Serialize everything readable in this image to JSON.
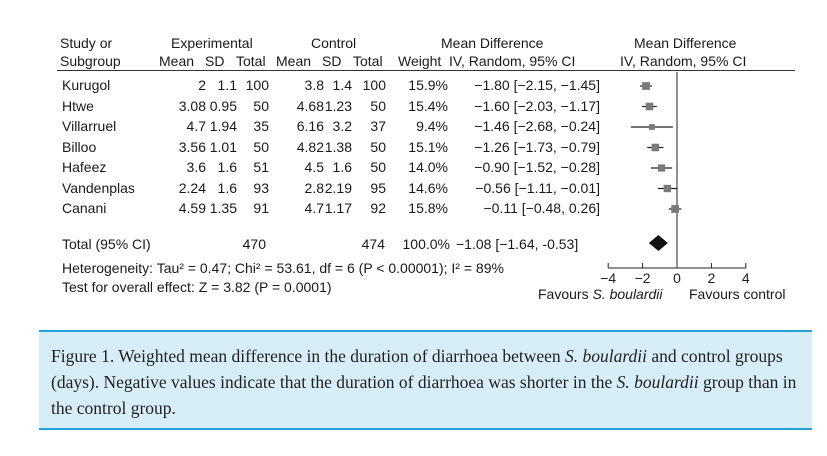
{
  "headers": {
    "study_1": "Study or",
    "study_2": "Subgroup",
    "experimental": "Experimental",
    "control": "Control",
    "md_1": "Mean Difference",
    "md_2": "IV, Random, 95% CI",
    "plot_1": "Mean Difference",
    "plot_2": "IV, Random, 95% CI",
    "mean": "Mean",
    "sd": "SD",
    "total": "Total",
    "weight": "Weight"
  },
  "studies": [
    {
      "name": "Kurugol",
      "e_mean": "2",
      "e_sd": "1.1",
      "e_total": "100",
      "c_mean": "3.8",
      "c_sd": "1.4",
      "c_total": "100",
      "weight": "15.9%",
      "md_text": "−1.80 [−2.15, −1.45]"
    },
    {
      "name": "Htwe",
      "e_mean": "3.08",
      "e_sd": "0.95",
      "e_total": "50",
      "c_mean": "4.68",
      "c_sd": "1.23",
      "c_total": "50",
      "weight": "15.4%",
      "md_text": "−1.60 [−2.03, −1.17]"
    },
    {
      "name": "Villarruel",
      "e_mean": "4.7",
      "e_sd": "1.94",
      "e_total": "35",
      "c_mean": "6.16",
      "c_sd": "3.2",
      "c_total": "37",
      "weight": "9.4%",
      "md_text": "−1.46 [−2.68, −0.24]"
    },
    {
      "name": "Billoo",
      "e_mean": "3.56",
      "e_sd": "1.01",
      "e_total": "50",
      "c_mean": "4.82",
      "c_sd": "1.38",
      "c_total": "50",
      "weight": "15.1%",
      "md_text": "−1.26 [−1.73, −0.79]"
    },
    {
      "name": "Hafeez",
      "e_mean": "3.6",
      "e_sd": "1.6",
      "e_total": "51",
      "c_mean": "4.5",
      "c_sd": "1.6",
      "c_total": "50",
      "weight": "14.0%",
      "md_text": "−0.90 [−1.52, −0.28]"
    },
    {
      "name": "Vandenplas",
      "e_mean": "2.24",
      "e_sd": "1.6",
      "e_total": "93",
      "c_mean": "2.8",
      "c_sd": "2.19",
      "c_total": "95",
      "weight": "14.6%",
      "md_text": "−0.56 [−1.11, −0.01]"
    },
    {
      "name": "Canani",
      "e_mean": "4.59",
      "e_sd": "1.35",
      "e_total": "91",
      "c_mean": "4.7",
      "c_sd": "1.17",
      "c_total": "92",
      "weight": "15.8%",
      "md_text": "−0.11 [−0.48, 0.26]"
    }
  ],
  "total": {
    "label": "Total (95% CI)",
    "e_total": "470",
    "c_total": "474",
    "weight": "100.0%",
    "md_text": "−1.08 [−1.64, -0.53]"
  },
  "heterogeneity": "Heterogeneity: Tau² = 0.47; Chi² = 53.61, df = 6 (P < 0.00001); I² = 89%",
  "overall_effect": "Test for overall effect: Z = 3.82 (P = 0.0001)",
  "favours_left_prefix": "Favours ",
  "favours_left_species": "S. boulardii",
  "favours_right": "Favours control",
  "caption": {
    "label": "Figure 1.",
    "text_1": " Weighted  mean difference in the duration of diarrhoea between ",
    "species_1": "S. boulardii",
    "text_2": " and control groups (days). Negative values indicate that the duration of diarrhoea was shorter in the ",
    "species_2": "S. boulardii",
    "text_3": " group than in the control group."
  },
  "chart_data": {
    "type": "forest",
    "x": [
      -1.8,
      -1.6,
      -1.46,
      -1.26,
      -0.9,
      -0.56,
      -0.11
    ],
    "ci_low": [
      -2.15,
      -2.03,
      -2.68,
      -1.73,
      -1.52,
      -1.11,
      -0.48
    ],
    "ci_high": [
      -1.45,
      -1.17,
      -0.24,
      -0.79,
      -0.28,
      -0.01,
      0.26
    ],
    "weights": [
      15.9,
      15.4,
      9.4,
      15.1,
      14.0,
      14.6,
      15.8
    ],
    "pooled": {
      "estimate": -1.08,
      "ci_low": -1.64,
      "ci_high": -0.53
    },
    "xlim": [
      -4,
      4
    ],
    "xticks": [
      -4,
      -2,
      0,
      2,
      4
    ],
    "tick_labels": [
      "−4",
      "−2",
      "0",
      "2",
      "4"
    ],
    "reference_line": 0,
    "marker_color": "#7a7a7a",
    "diamond_color": "#111111"
  }
}
